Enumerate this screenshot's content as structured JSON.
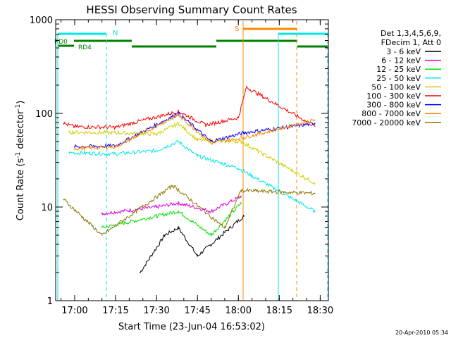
{
  "chart_data": {
    "type": "line",
    "title": "HESSI Observing Summary Count Rates",
    "xlabel": "Start Time (23-Jun-04 16:53:02)",
    "ylabel": "Count Rate (s",
    "ylabel_sup": "-1",
    "ylabel_tail": " detector",
    "ylabel_sup2": "-1",
    "ylabel_end": ")",
    "yscale": "log",
    "ylim": [
      1,
      1000
    ],
    "xlim": [
      "16:53:02",
      "18:33:00"
    ],
    "x_ticks": [
      "17:00",
      "17:15",
      "17:30",
      "17:45",
      "18:00",
      "18:15",
      "18:30"
    ],
    "y_ticks": [
      "1",
      "10",
      "100",
      "1000"
    ],
    "legend_header": [
      "Det 1,3,4,5,6,9,",
      "FDecim 1, Att 0"
    ],
    "legend_position": "right",
    "series": [
      {
        "name": "3 - 6 keV",
        "color": "#000000",
        "values": [
          [
            "17:24",
            2
          ],
          [
            "17:33",
            5
          ],
          [
            "17:38",
            6
          ],
          [
            "17:45",
            3
          ],
          [
            "18:02",
            8
          ]
        ]
      },
      {
        "name": "6 - 12 keV",
        "color": "#e000e0",
        "values": [
          [
            "17:10",
            8.5
          ],
          [
            "17:30",
            10
          ],
          [
            "17:38",
            11
          ],
          [
            "17:50",
            9
          ],
          [
            "18:01",
            13
          ]
        ]
      },
      {
        "name": "12 - 25 keV",
        "color": "#00e000",
        "values": [
          [
            "17:10",
            6
          ],
          [
            "17:30",
            8
          ],
          [
            "17:38",
            9
          ],
          [
            "17:50",
            5
          ],
          [
            "18:01",
            11
          ]
        ]
      },
      {
        "name": "25 - 50 keV",
        "color": "#00e8e8",
        "values": [
          [
            "16:58",
            38
          ],
          [
            "17:15",
            37
          ],
          [
            "17:30",
            40
          ],
          [
            "17:38",
            50
          ],
          [
            "17:45",
            35
          ],
          [
            "18:00",
            26
          ],
          [
            "18:28",
            9
          ]
        ]
      },
      {
        "name": "50 - 100 keV",
        "color": "#d0d000",
        "values": [
          [
            "16:58",
            63
          ],
          [
            "17:15",
            62
          ],
          [
            "17:30",
            60
          ],
          [
            "17:38",
            78
          ],
          [
            "17:45",
            52
          ],
          [
            "18:01",
            50
          ],
          [
            "18:28",
            18
          ]
        ]
      },
      {
        "name": "100 - 300 keV",
        "color": "#ff0000",
        "values": [
          [
            "16:56",
            78
          ],
          [
            "17:00",
            72
          ],
          [
            "17:15",
            71
          ],
          [
            "17:38",
            105
          ],
          [
            "17:48",
            75
          ],
          [
            "18:00",
            90
          ],
          [
            "18:03",
            190
          ],
          [
            "18:28",
            73
          ]
        ]
      },
      {
        "name": "300 - 800 keV",
        "color": "#0000ff",
        "values": [
          [
            "17:00",
            44
          ],
          [
            "17:15",
            45
          ],
          [
            "17:38",
            100
          ],
          [
            "17:50",
            50
          ],
          [
            "18:02",
            62
          ],
          [
            "18:28",
            78
          ]
        ]
      },
      {
        "name": "800 - 7000 keV",
        "color": "#ff8800",
        "values": [
          [
            "17:00",
            42
          ],
          [
            "17:15",
            44
          ],
          [
            "17:38",
            96
          ],
          [
            "17:50",
            48
          ],
          [
            "18:02",
            55
          ],
          [
            "18:28",
            85
          ]
        ]
      },
      {
        "name": "7000 - 20000 keV",
        "color": "#8b7500",
        "values": [
          [
            "16:56",
            12
          ],
          [
            "17:10",
            5
          ],
          [
            "17:36",
            17
          ],
          [
            "17:55",
            6
          ],
          [
            "18:01",
            15
          ],
          [
            "18:28",
            14
          ]
        ]
      }
    ],
    "annotations": [
      {
        "text": "N",
        "color": "#00e8e8"
      },
      {
        "text": "S",
        "color": "#ff8800"
      },
      {
        "text": "RD0",
        "color": "#008000"
      },
      {
        "text": "RD4",
        "color": "#008000"
      }
    ]
  },
  "footer": {
    "timestamp": "20-Apr-2010 05:34"
  }
}
